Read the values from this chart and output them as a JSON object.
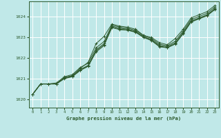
{
  "xlabel": "Graphe pression niveau de la mer (hPa)",
  "bg_color": "#c0e8e8",
  "grid_color": "#ffffff",
  "line_color": "#2d5a2d",
  "marker": "+",
  "xlim": [
    -0.5,
    23.5
  ],
  "ylim": [
    1019.6,
    1024.75
  ],
  "yticks": [
    1020,
    1021,
    1022,
    1023,
    1024
  ],
  "xticks": [
    0,
    1,
    2,
    3,
    4,
    5,
    6,
    7,
    8,
    9,
    10,
    11,
    12,
    13,
    14,
    15,
    16,
    17,
    18,
    19,
    20,
    21,
    22,
    23
  ],
  "figwidth": 3.2,
  "figheight": 2.0,
  "dpi": 100,
  "lines": [
    [
      1020.25,
      1020.75,
      1020.75,
      1020.75,
      1021.05,
      1021.15,
      1021.5,
      1021.8,
      1022.7,
      1023.05,
      1023.65,
      1023.55,
      1023.5,
      1023.4,
      1023.1,
      1023.0,
      1022.75,
      1022.65,
      1022.95,
      1023.4,
      1023.95,
      1024.1,
      1024.25,
      1024.55
    ],
    [
      1020.25,
      1020.75,
      1020.75,
      1020.75,
      1021.05,
      1021.15,
      1021.45,
      1021.65,
      1022.4,
      1022.7,
      1023.55,
      1023.45,
      1023.4,
      1023.3,
      1023.05,
      1022.9,
      1022.62,
      1022.55,
      1022.75,
      1023.25,
      1023.8,
      1023.95,
      1024.1,
      1024.4
    ],
    [
      1020.25,
      1020.75,
      1020.75,
      1020.8,
      1021.1,
      1021.2,
      1021.55,
      1021.75,
      1022.5,
      1022.8,
      1023.6,
      1023.5,
      1023.45,
      1023.35,
      1023.1,
      1022.95,
      1022.68,
      1022.6,
      1022.82,
      1023.32,
      1023.87,
      1024.02,
      1024.17,
      1024.47
    ],
    [
      1020.25,
      1020.75,
      1020.75,
      1020.75,
      1021.05,
      1021.1,
      1021.42,
      1021.62,
      1022.35,
      1022.65,
      1023.5,
      1023.4,
      1023.37,
      1023.27,
      1023.02,
      1022.87,
      1022.58,
      1022.52,
      1022.7,
      1023.2,
      1023.77,
      1023.92,
      1024.07,
      1024.37
    ],
    [
      1020.25,
      1020.75,
      1020.75,
      1020.75,
      1021.0,
      1021.1,
      1021.4,
      1021.6,
      1022.3,
      1022.6,
      1023.48,
      1023.38,
      1023.35,
      1023.25,
      1023.0,
      1022.85,
      1022.55,
      1022.5,
      1022.68,
      1023.18,
      1023.75,
      1023.9,
      1024.05,
      1024.35
    ]
  ]
}
